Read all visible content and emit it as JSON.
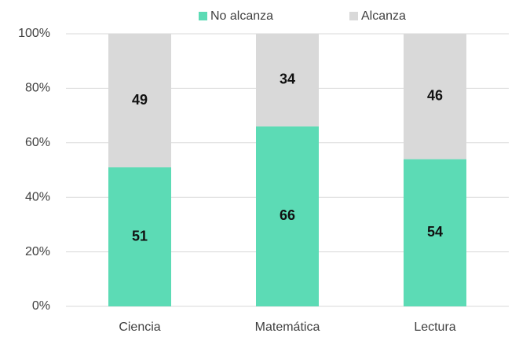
{
  "chart_data": {
    "type": "stacked_bar",
    "categories": [
      "Ciencia",
      "Matemática",
      "Lectura"
    ],
    "series": [
      {
        "name": "No alcanza",
        "color": "#5cdbb5",
        "values": [
          51,
          66,
          54
        ]
      },
      {
        "name": "Alcanza",
        "color": "#d9d9d9",
        "values": [
          49,
          34,
          46
        ]
      }
    ],
    "ylim": [
      0,
      100
    ],
    "yticks": [
      {
        "value": 0,
        "label": "0%"
      },
      {
        "value": 20,
        "label": "20%"
      },
      {
        "value": 40,
        "label": "40%"
      },
      {
        "value": 60,
        "label": "60%"
      },
      {
        "value": 80,
        "label": "80%"
      },
      {
        "value": 100,
        "label": "100%"
      }
    ],
    "grid": true,
    "legend": "top"
  }
}
